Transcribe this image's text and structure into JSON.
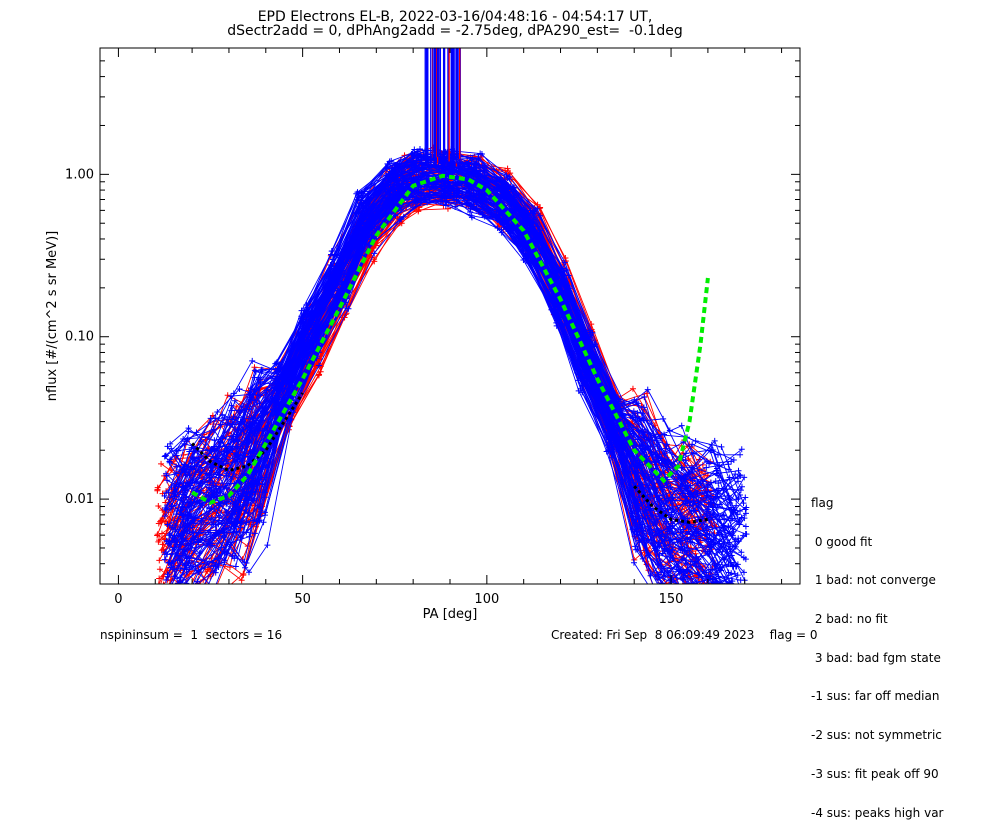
{
  "chart_data": {
    "type": "line",
    "title_line1": "EPD Electrons EL-B, 2022-03-16/04:48:16 - 04:54:17 UT,",
    "title_line2": "dSectr2add = 0, dPhAng2add = -2.75deg, dPA290_est=  -0.1deg",
    "xlabel": "PA [deg]",
    "ylabel": "nflux [#/(cm^2 s sr MeV)]",
    "xlim": [
      -5,
      185
    ],
    "ylim": [
      0.003,
      6
    ],
    "yscale": "log",
    "x_ticks": [
      0,
      50,
      100,
      150
    ],
    "y_ticks": [
      0.01,
      0.1,
      1.0
    ],
    "y_tick_labels": [
      "0.01",
      "0.10",
      "1.00"
    ],
    "series": [
      {
        "color": "#ff0000",
        "x": [
          13,
          18,
          25,
          32,
          37,
          45,
          53,
          60,
          68,
          75,
          80,
          88,
          97,
          105,
          113,
          120,
          127,
          135,
          142,
          148,
          155,
          160
        ],
        "y": [
          0.005,
          0.007,
          0.009,
          0.012,
          0.018,
          0.04,
          0.09,
          0.2,
          0.45,
          0.75,
          0.9,
          0.95,
          0.9,
          0.7,
          0.45,
          0.2,
          0.08,
          0.03,
          0.013,
          0.009,
          0.007,
          0.006
        ]
      },
      {
        "color": "#0000ff",
        "x": [
          15,
          20,
          27,
          33,
          38,
          45,
          52,
          60,
          67,
          75,
          82,
          90,
          97,
          105,
          112,
          120,
          127,
          135,
          142,
          148,
          155,
          162,
          168
        ],
        "y": [
          0.006,
          0.008,
          0.01,
          0.013,
          0.02,
          0.045,
          0.1,
          0.22,
          0.5,
          0.8,
          0.95,
          0.95,
          0.85,
          0.65,
          0.4,
          0.18,
          0.07,
          0.028,
          0.012,
          0.008,
          0.007,
          0.006,
          0.005
        ]
      },
      {
        "color": "#000000",
        "style": "dotted",
        "x": [
          20,
          25,
          30,
          35,
          40,
          45,
          50
        ],
        "y": [
          0.022,
          0.017,
          0.015,
          0.016,
          0.02,
          0.03,
          0.045
        ]
      },
      {
        "color": "#000000",
        "style": "dotted",
        "x": [
          140,
          145,
          150,
          155,
          160
        ],
        "y": [
          0.012,
          0.009,
          0.0075,
          0.0072,
          0.0075
        ]
      },
      {
        "color": "#00ee00",
        "style": "dashed",
        "x": [
          20,
          25,
          30,
          35,
          40,
          50,
          60,
          70,
          80,
          88,
          95,
          100,
          110,
          120,
          130,
          140,
          148,
          152,
          155,
          158,
          160
        ],
        "y": [
          0.011,
          0.0095,
          0.0105,
          0.014,
          0.022,
          0.055,
          0.15,
          0.42,
          0.85,
          0.98,
          0.93,
          0.8,
          0.45,
          0.17,
          0.055,
          0.02,
          0.013,
          0.016,
          0.03,
          0.09,
          0.23
        ]
      }
    ]
  },
  "legend": {
    "title": "flag",
    "items": [
      " 0 good fit",
      " 1 bad: not converge",
      " 2 bad: no fit",
      " 3 bad: bad fgm state",
      "-1 sus: far off median",
      "-2 sus: not symmetric",
      "-3 sus: fit peak off 90",
      "-4 sus: peaks high var"
    ]
  },
  "footer": {
    "left": "nspininsum =  1  sectors = 16",
    "right": "Created: Fri Sep  8 06:09:49 2023    flag = 0"
  },
  "colors": {
    "red": "#ff0000",
    "blue": "#0000ff",
    "green": "#00ee00",
    "black": "#000000"
  }
}
